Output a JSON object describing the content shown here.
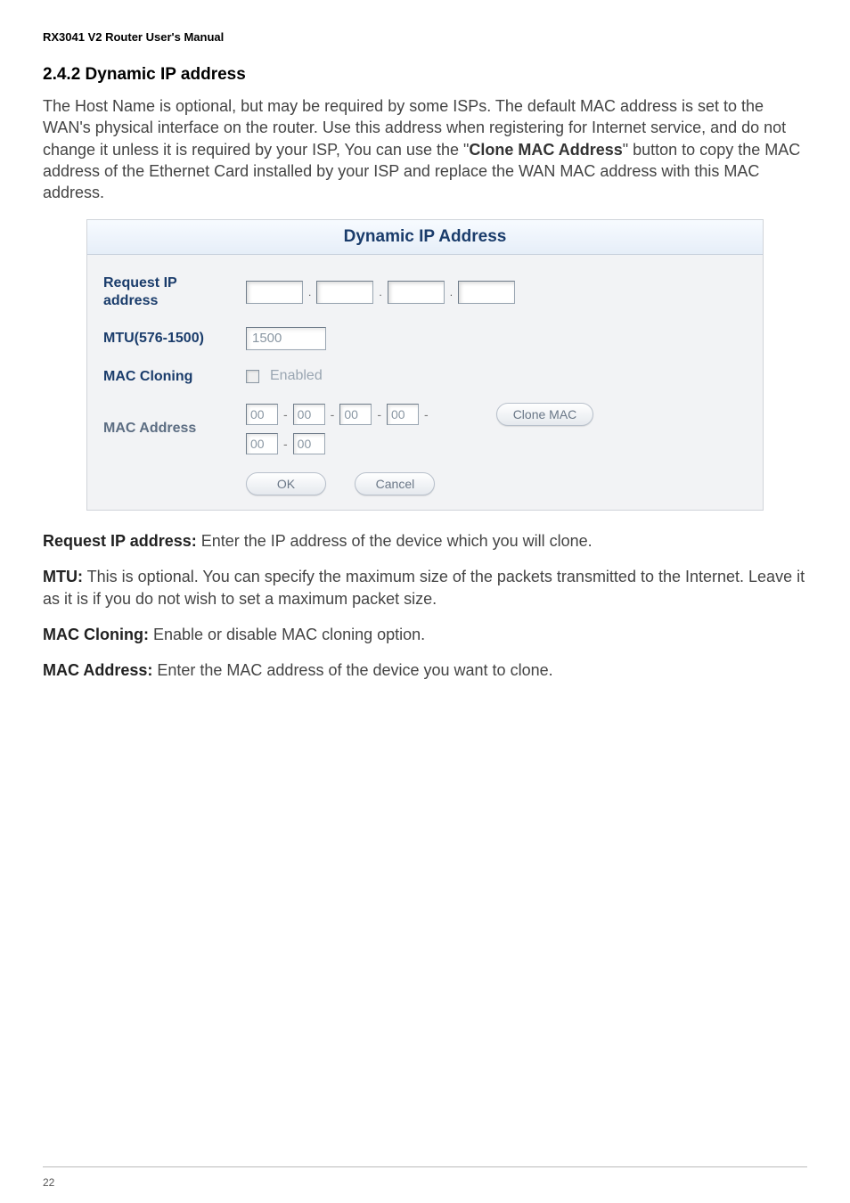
{
  "header": {
    "title": "RX3041 V2 Router User's Manual"
  },
  "section": {
    "number": "2.4.2",
    "title": "Dynamic IP address"
  },
  "intro": {
    "text_before_bold": "The Host Name is optional, but may be required by some ISPs. The default MAC address is set to the WAN's physical interface on the router. Use this address when registering for Internet service, and do not change it unless it is required by your ISP, You can use the \"",
    "bold": "Clone MAC Address",
    "text_after_bold": "\" button to copy the MAC address of the Ethernet Card installed by your ISP and replace the WAN MAC address with this MAC address."
  },
  "panel": {
    "title": "Dynamic IP Address",
    "rows": {
      "request_ip": {
        "label": "Request IP\naddress",
        "values": [
          "",
          "",
          "",
          ""
        ]
      },
      "mtu": {
        "label": "MTU(576-1500)",
        "value": "1500"
      },
      "mac_cloning": {
        "label": "MAC Cloning",
        "checkbox_checked": false,
        "checkbox_label": "Enabled"
      },
      "mac_address": {
        "label": "MAC Address",
        "values": [
          "00",
          "00",
          "00",
          "00",
          "00",
          "00"
        ],
        "clone_btn": "Clone MAC"
      }
    },
    "buttons": {
      "ok": "OK",
      "cancel": "Cancel"
    }
  },
  "definitions": [
    {
      "term": "Request IP address:",
      "desc": " Enter the IP address of the device which you will clone."
    },
    {
      "term": "MTU:",
      "desc": " This is optional. You can specify the maximum size of the packets transmitted to the Internet. Leave it as it is if you do not wish to set a maximum packet size."
    },
    {
      "term": "MAC Cloning:",
      "desc": " Enable or disable MAC cloning option."
    },
    {
      "term": "MAC Address:",
      "desc": " Enter the MAC address of the device you want to clone."
    }
  ],
  "footer": {
    "page": "22"
  }
}
